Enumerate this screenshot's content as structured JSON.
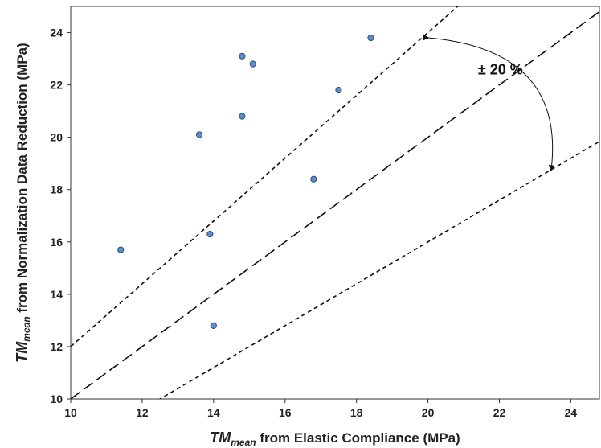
{
  "chart_data": {
    "type": "scatter",
    "xlabel": {
      "main": "TM",
      "sub": "mean",
      "rest": " from Elastic Compliance (MPa)"
    },
    "ylabel": {
      "main": "TM",
      "sub": "mean",
      "rest": " from Normalization Data Reduction (MPa)"
    },
    "xlim": [
      10,
      24.8
    ],
    "ylim": [
      10,
      25
    ],
    "xticks": [
      10,
      12,
      14,
      16,
      18,
      20,
      22,
      24
    ],
    "yticks": [
      10,
      12,
      14,
      16,
      18,
      20,
      22,
      24
    ],
    "grid": false,
    "legend": "none",
    "points": [
      {
        "x": 11.4,
        "y": 15.7
      },
      {
        "x": 13.6,
        "y": 20.1
      },
      {
        "x": 13.9,
        "y": 16.3
      },
      {
        "x": 14.0,
        "y": 12.8
      },
      {
        "x": 14.8,
        "y": 23.1
      },
      {
        "x": 14.8,
        "y": 20.8
      },
      {
        "x": 15.1,
        "y": 22.8
      },
      {
        "x": 16.8,
        "y": 18.4
      },
      {
        "x": 17.5,
        "y": 21.8
      },
      {
        "x": 18.4,
        "y": 23.8
      }
    ],
    "reference_lines": [
      {
        "name": "1:1",
        "slope": 1.0,
        "style": "long-dash"
      },
      {
        "name": "+20%",
        "slope": 1.2,
        "style": "short-dash"
      },
      {
        "name": "-20%",
        "slope": 0.8,
        "style": "short-dash"
      }
    ],
    "annotation": {
      "text": "± 20 %",
      "arrow_from": {
        "x": 20.0,
        "y": 23.8
      },
      "arrow_to": {
        "x": 23.45,
        "y": 18.75
      }
    },
    "colors": {
      "marker_fill": "#5b8fc9",
      "marker_stroke": "#2c4f7c",
      "line": "#111111",
      "axis": "#333333"
    }
  }
}
